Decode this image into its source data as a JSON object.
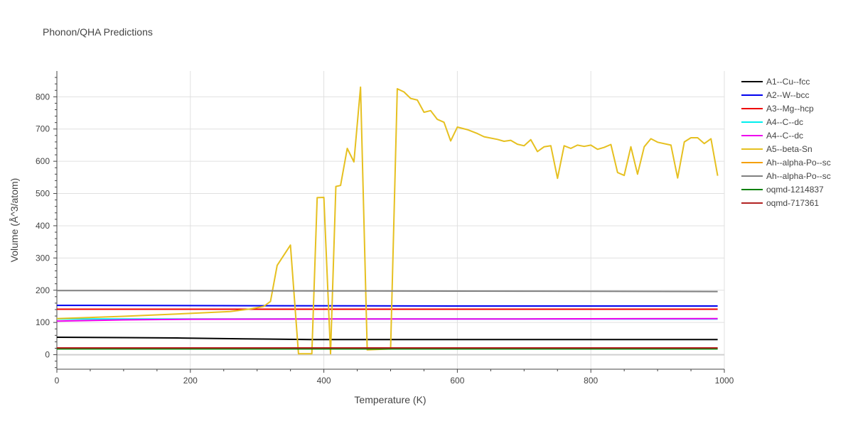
{
  "chart_data": {
    "type": "line",
    "title": "Phonon/QHA Predictions",
    "xlabel": "Temperature (K)",
    "ylabel": "Volume (Å^3/atom)",
    "xlim": [
      0,
      1000
    ],
    "ylim": [
      -45,
      880
    ],
    "x_ticks": [
      0,
      200,
      400,
      600,
      800,
      1000
    ],
    "y_ticks": [
      0,
      100,
      200,
      300,
      400,
      500,
      600,
      700,
      800
    ],
    "grid": true,
    "legend_position": "right",
    "series": [
      {
        "name": "A1--Cu--fcc",
        "color": "#000000",
        "points": [
          [
            0,
            54
          ],
          [
            100,
            53
          ],
          [
            180,
            52
          ],
          [
            280,
            49
          ],
          [
            380,
            47
          ],
          [
            500,
            47
          ],
          [
            700,
            47
          ],
          [
            990,
            47
          ]
        ]
      },
      {
        "name": "A2--W--bcc",
        "color": "#0000ee",
        "points": [
          [
            0,
            153
          ],
          [
            300,
            152
          ],
          [
            600,
            151
          ],
          [
            990,
            151
          ]
        ]
      },
      {
        "name": "A3--Mg--hcp",
        "color": "#ee0000",
        "points": [
          [
            0,
            141
          ],
          [
            500,
            141
          ],
          [
            990,
            141
          ]
        ]
      },
      {
        "name": "A4--C--dc",
        "color": "#00eeee",
        "points": [
          [
            0,
            111
          ],
          [
            500,
            111
          ],
          [
            990,
            111
          ]
        ]
      },
      {
        "name": "A4--C--dc",
        "color": "#ee00ee",
        "points": [
          [
            0,
            104
          ],
          [
            100,
            108
          ],
          [
            200,
            110
          ],
          [
            400,
            111
          ],
          [
            700,
            111
          ],
          [
            990,
            112
          ]
        ]
      },
      {
        "name": "A5--beta-Sn",
        "color": "#e6c020",
        "points": [
          [
            0,
            112
          ],
          [
            100,
            119
          ],
          [
            200,
            128
          ],
          [
            260,
            134
          ],
          [
            290,
            142
          ],
          [
            310,
            150
          ],
          [
            320,
            165
          ],
          [
            330,
            277
          ],
          [
            350,
            340
          ],
          [
            360,
            60
          ],
          [
            362,
            3
          ],
          [
            382,
            3
          ],
          [
            390,
            487
          ],
          [
            400,
            488
          ],
          [
            410,
            3
          ],
          [
            418,
            522
          ],
          [
            425,
            525
          ],
          [
            435,
            640
          ],
          [
            445,
            598
          ],
          [
            455,
            830
          ],
          [
            465,
            15
          ],
          [
            500,
            18
          ],
          [
            510,
            825
          ],
          [
            520,
            815
          ],
          [
            530,
            795
          ],
          [
            540,
            790
          ],
          [
            550,
            752
          ],
          [
            560,
            757
          ],
          [
            570,
            730
          ],
          [
            580,
            721
          ],
          [
            590,
            663
          ],
          [
            600,
            706
          ],
          [
            615,
            698
          ],
          [
            630,
            686
          ],
          [
            640,
            676
          ],
          [
            660,
            668
          ],
          [
            670,
            662
          ],
          [
            680,
            665
          ],
          [
            690,
            653
          ],
          [
            700,
            648
          ],
          [
            710,
            667
          ],
          [
            720,
            630
          ],
          [
            730,
            645
          ],
          [
            740,
            648
          ],
          [
            750,
            547
          ],
          [
            760,
            648
          ],
          [
            770,
            640
          ],
          [
            780,
            650
          ],
          [
            790,
            646
          ],
          [
            800,
            650
          ],
          [
            810,
            637
          ],
          [
            820,
            643
          ],
          [
            830,
            652
          ],
          [
            840,
            565
          ],
          [
            850,
            556
          ],
          [
            860,
            645
          ],
          [
            870,
            560
          ],
          [
            880,
            645
          ],
          [
            890,
            670
          ],
          [
            900,
            659
          ],
          [
            920,
            650
          ],
          [
            930,
            548
          ],
          [
            940,
            660
          ],
          [
            950,
            673
          ],
          [
            960,
            673
          ],
          [
            970,
            655
          ],
          [
            980,
            670
          ],
          [
            990,
            555
          ]
        ]
      },
      {
        "name": "Ah--alpha-Po--sc",
        "color": "#f5a000",
        "points": [
          [
            0,
            20
          ],
          [
            500,
            20
          ],
          [
            990,
            20
          ]
        ]
      },
      {
        "name": "Ah--alpha-Po--sc",
        "color": "#808080",
        "points": [
          [
            0,
            199
          ],
          [
            400,
            198
          ],
          [
            700,
            197
          ],
          [
            990,
            196
          ]
        ]
      },
      {
        "name": "oqmd-1214837",
        "color": "#008000",
        "points": [
          [
            0,
            18
          ],
          [
            500,
            18
          ],
          [
            990,
            18
          ]
        ]
      },
      {
        "name": "oqmd-717361",
        "color": "#b22222",
        "points": [
          [
            0,
            21
          ],
          [
            500,
            21
          ],
          [
            990,
            21
          ]
        ]
      }
    ]
  }
}
